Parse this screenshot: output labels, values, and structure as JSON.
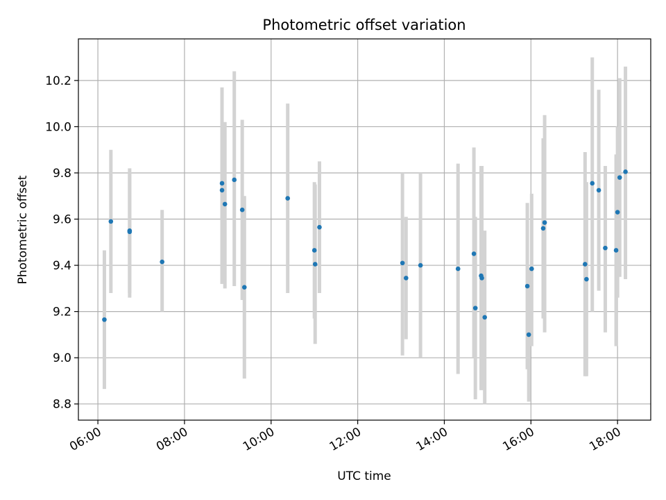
{
  "chart_data": {
    "type": "scatter",
    "title": "Photometric offset variation",
    "xlabel": "UTC time",
    "ylabel": "Photometric offset",
    "x_unit": "hours (UTC)",
    "xlim": [
      "05:33",
      "18:46"
    ],
    "ylim": [
      8.73,
      10.38
    ],
    "x_ticks": [
      "06:00",
      "08:00",
      "10:00",
      "12:00",
      "14:00",
      "16:00",
      "18:00"
    ],
    "y_ticks": [
      "8.8",
      "9.0",
      "9.2",
      "9.4",
      "9.6",
      "9.8",
      "10.0",
      "10.2"
    ],
    "grid": true,
    "colors": {
      "marker": "#1f77b4",
      "errorbar": "#d3d3d3",
      "grid": "#b0b0b0"
    },
    "series": [
      {
        "points": [
          {
            "x": "06:09",
            "y": 9.165,
            "lo": 8.865,
            "hi": 9.465
          },
          {
            "x": "06:18",
            "y": 9.59,
            "lo": 9.28,
            "hi": 9.9
          },
          {
            "x": "06:44",
            "y": 9.55,
            "lo": 9.26,
            "hi": 9.82
          },
          {
            "x": "06:44",
            "y": 9.545,
            "lo": 9.28,
            "hi": 9.8
          },
          {
            "x": "07:29",
            "y": 9.415,
            "lo": 9.2,
            "hi": 9.64
          },
          {
            "x": "08:52",
            "y": 9.755,
            "lo": 9.32,
            "hi": 10.17
          },
          {
            "x": "08:52",
            "y": 9.725,
            "lo": 9.32,
            "hi": 9.93
          },
          {
            "x": "08:56",
            "y": 9.665,
            "lo": 9.3,
            "hi": 10.02
          },
          {
            "x": "09:09",
            "y": 9.77,
            "lo": 9.31,
            "hi": 10.24
          },
          {
            "x": "09:20",
            "y": 9.64,
            "lo": 9.25,
            "hi": 10.03
          },
          {
            "x": "09:23",
            "y": 9.305,
            "lo": 8.91,
            "hi": 9.7
          },
          {
            "x": "10:23",
            "y": 9.69,
            "lo": 9.28,
            "hi": 10.1
          },
          {
            "x": "11:00",
            "y": 9.465,
            "lo": 9.17,
            "hi": 9.76
          },
          {
            "x": "11:01",
            "y": 9.405,
            "lo": 9.06,
            "hi": 9.75
          },
          {
            "x": "11:07",
            "y": 9.565,
            "lo": 9.28,
            "hi": 9.85
          },
          {
            "x": "13:02",
            "y": 9.41,
            "lo": 9.01,
            "hi": 9.8
          },
          {
            "x": "13:07",
            "y": 9.345,
            "lo": 9.08,
            "hi": 9.61
          },
          {
            "x": "13:27",
            "y": 9.4,
            "lo": 9.0,
            "hi": 9.8
          },
          {
            "x": "14:19",
            "y": 9.385,
            "lo": 8.93,
            "hi": 9.84
          },
          {
            "x": "14:41",
            "y": 9.45,
            "lo": 9.0,
            "hi": 9.91
          },
          {
            "x": "14:43",
            "y": 9.215,
            "lo": 8.82,
            "hi": 9.61
          },
          {
            "x": "14:51",
            "y": 9.355,
            "lo": 8.86,
            "hi": 9.83
          },
          {
            "x": "14:52",
            "y": 9.345,
            "lo": 8.86,
            "hi": 9.83
          },
          {
            "x": "14:56",
            "y": 9.175,
            "lo": 8.8,
            "hi": 9.55
          },
          {
            "x": "15:55",
            "y": 9.31,
            "lo": 8.95,
            "hi": 9.67
          },
          {
            "x": "15:57",
            "y": 9.1,
            "lo": 8.81,
            "hi": 9.39
          },
          {
            "x": "16:01",
            "y": 9.385,
            "lo": 9.05,
            "hi": 9.71
          },
          {
            "x": "16:17",
            "y": 9.56,
            "lo": 9.17,
            "hi": 9.95
          },
          {
            "x": "16:19",
            "y": 9.585,
            "lo": 9.11,
            "hi": 10.05
          },
          {
            "x": "17:15",
            "y": 9.405,
            "lo": 8.92,
            "hi": 9.89
          },
          {
            "x": "17:17",
            "y": 9.34,
            "lo": 8.92,
            "hi": 9.76
          },
          {
            "x": "17:25",
            "y": 9.755,
            "lo": 9.2,
            "hi": 10.3
          },
          {
            "x": "17:34",
            "y": 9.725,
            "lo": 9.29,
            "hi": 10.16
          },
          {
            "x": "17:43",
            "y": 9.475,
            "lo": 9.11,
            "hi": 9.83
          },
          {
            "x": "17:58",
            "y": 9.465,
            "lo": 9.05,
            "hi": 9.88
          },
          {
            "x": "18:00",
            "y": 9.63,
            "lo": 9.26,
            "hi": 10.0
          },
          {
            "x": "18:03",
            "y": 9.78,
            "lo": 9.35,
            "hi": 10.21
          },
          {
            "x": "18:11",
            "y": 9.805,
            "lo": 9.34,
            "hi": 10.26
          }
        ]
      }
    ]
  }
}
